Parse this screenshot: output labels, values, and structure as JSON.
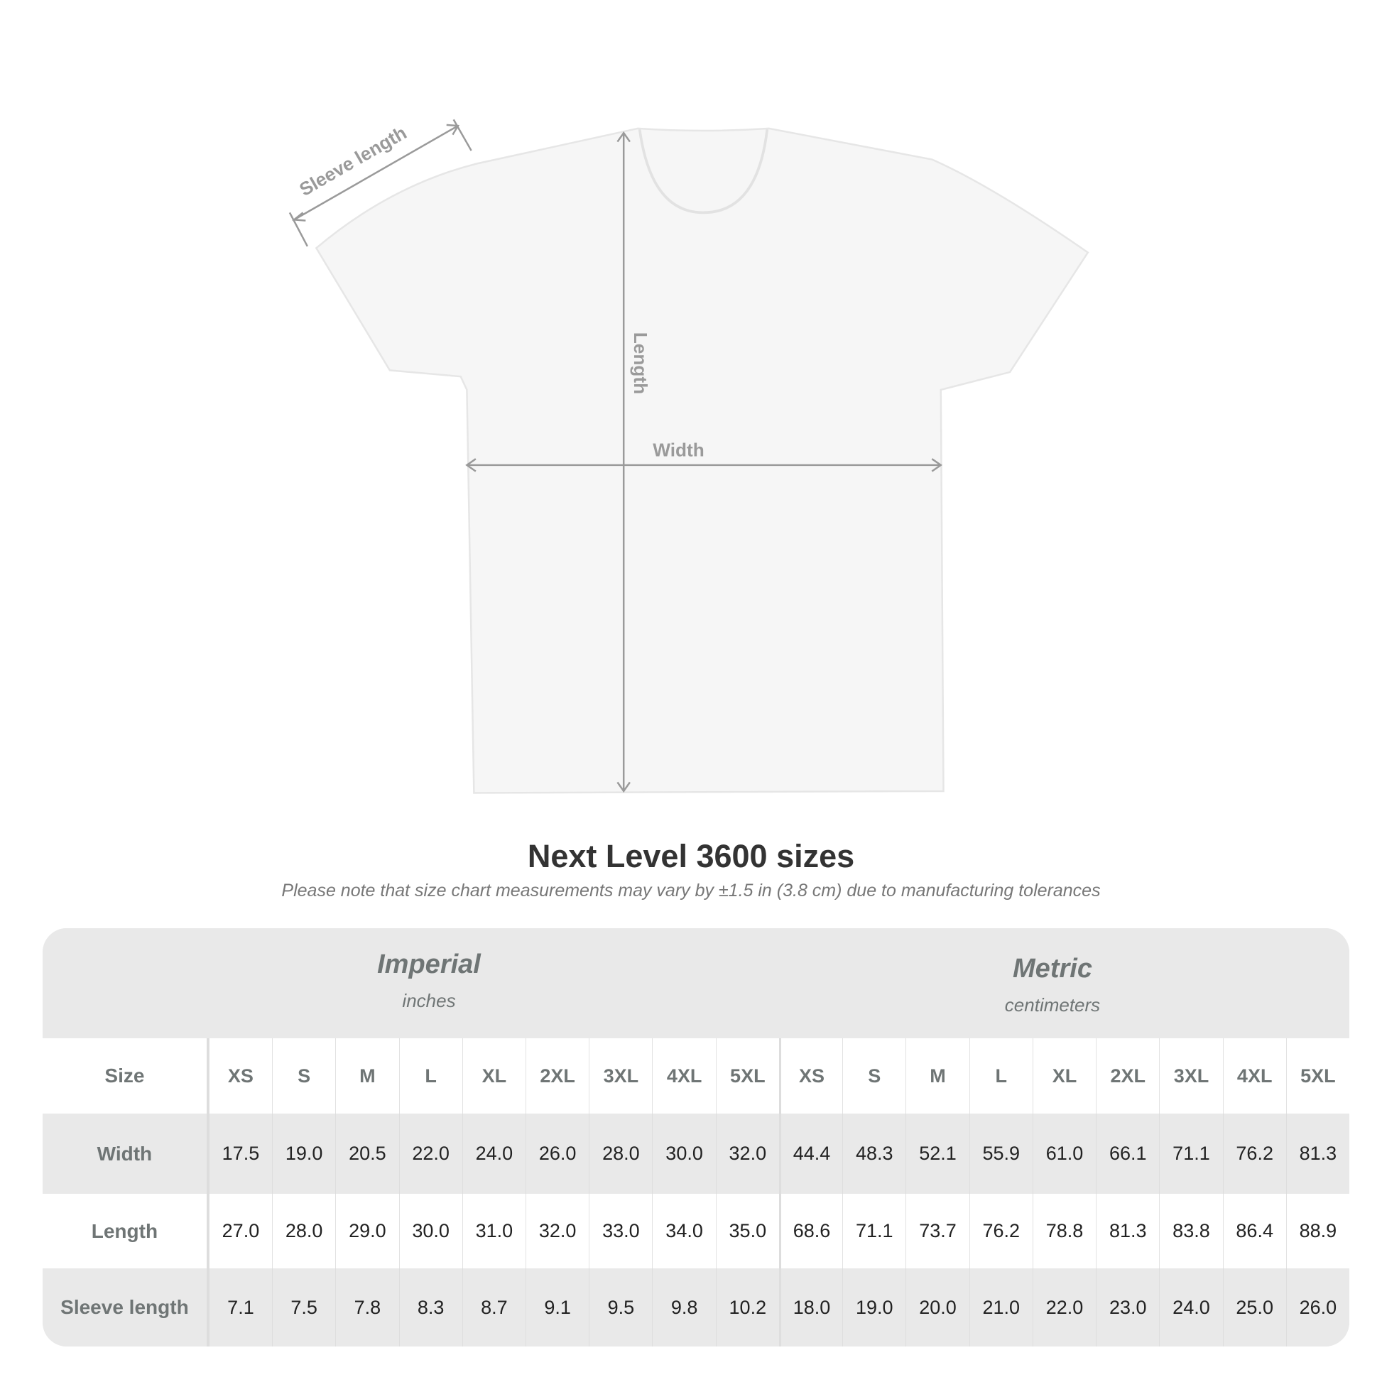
{
  "diagram": {
    "labels": {
      "sleeve": "Sleeve length",
      "length": "Length",
      "width": "Width"
    },
    "shirt_color": "#f6f6f6",
    "line_color": "#9a9a9a"
  },
  "title": "Next Level 3600 sizes",
  "subtitle": "Please note that size chart measurements may vary by ±1.5 in (3.8 cm) due to manufacturing tolerances",
  "table": {
    "imperial": {
      "name": "Imperial",
      "unit": "inches"
    },
    "metric": {
      "name": "Metric",
      "unit": "centimeters"
    },
    "size_label": "Size",
    "sizes": [
      "XS",
      "S",
      "M",
      "L",
      "XL",
      "2XL",
      "3XL",
      "4XL",
      "5XL"
    ],
    "rows": [
      {
        "label": "Width",
        "imperial": [
          "17.5",
          "19.0",
          "20.5",
          "22.0",
          "24.0",
          "26.0",
          "28.0",
          "30.0",
          "32.0"
        ],
        "metric": [
          "44.4",
          "48.3",
          "52.1",
          "55.9",
          "61.0",
          "66.1",
          "71.1",
          "76.2",
          "81.3"
        ]
      },
      {
        "label": "Length",
        "imperial": [
          "27.0",
          "28.0",
          "29.0",
          "30.0",
          "31.0",
          "32.0",
          "33.0",
          "34.0",
          "35.0"
        ],
        "metric": [
          "68.6",
          "71.1",
          "73.7",
          "76.2",
          "78.8",
          "81.3",
          "83.8",
          "86.4",
          "88.9"
        ]
      },
      {
        "label": "Sleeve length",
        "imperial": [
          "7.1",
          "7.5",
          "7.8",
          "8.3",
          "8.7",
          "9.1",
          "9.5",
          "9.8",
          "10.2"
        ],
        "metric": [
          "18.0",
          "19.0",
          "20.0",
          "21.0",
          "22.0",
          "23.0",
          "24.0",
          "25.0",
          "26.0"
        ]
      }
    ]
  }
}
